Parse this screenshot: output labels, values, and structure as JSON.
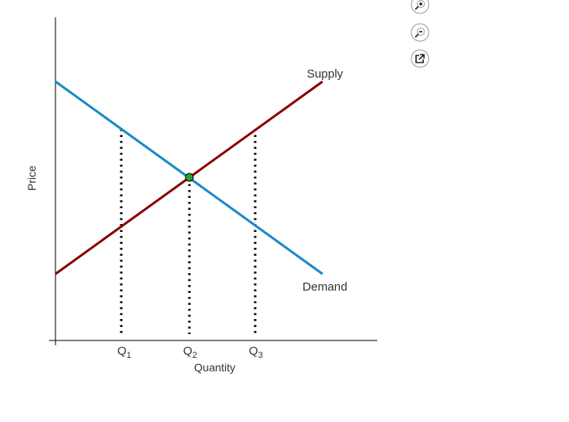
{
  "axes": {
    "x_label": "Quantity",
    "y_label": "Price"
  },
  "curves": {
    "supply": "Supply",
    "demand": "Demand"
  },
  "ticks": [
    {
      "base": "Q",
      "sub": "1"
    },
    {
      "base": "Q",
      "sub": "2"
    },
    {
      "base": "Q",
      "sub": "3"
    }
  ]
}
